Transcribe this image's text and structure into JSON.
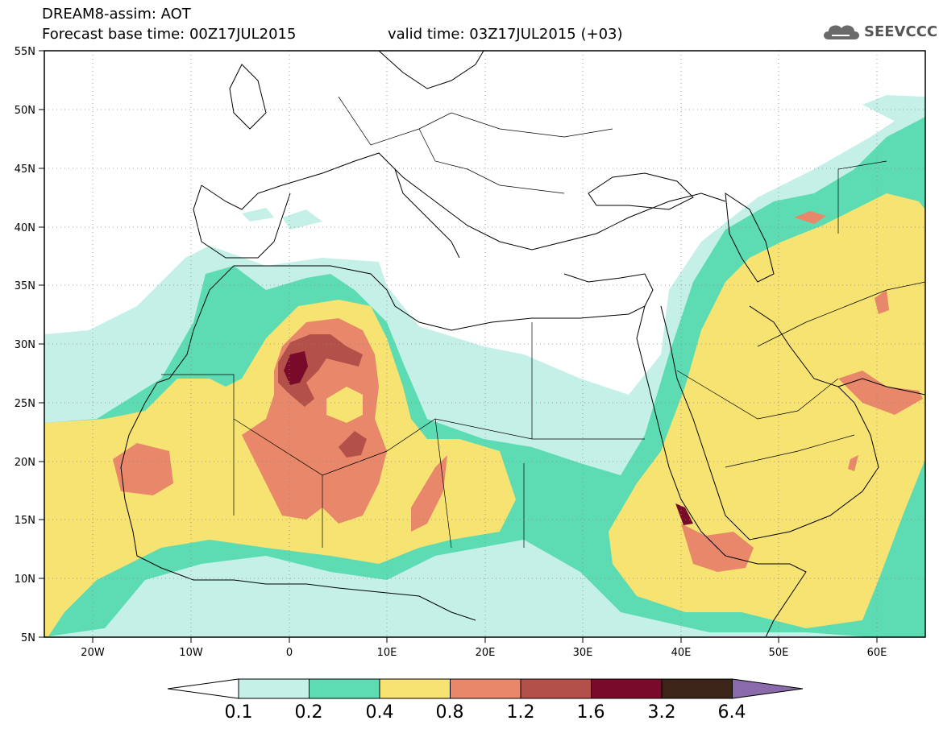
{
  "header": {
    "title_line1": "DREAM8-assim: AOT",
    "title_line2": "Forecast base time: 00Z17JUL2015",
    "valid_time": "valid time: 03Z17JUL2015 (+03)",
    "logo_text": "SEEVCCC"
  },
  "axes": {
    "lat_labels": [
      "55N",
      "50N",
      "45N",
      "40N",
      "35N",
      "30N",
      "25N",
      "20N",
      "15N",
      "10N",
      "5N"
    ],
    "lon_labels": [
      "20W",
      "10W",
      "0",
      "10E",
      "20E",
      "30E",
      "40E",
      "50E",
      "60E"
    ],
    "lon_range": [
      -25,
      65
    ],
    "lat_range": [
      5,
      55
    ],
    "grid": "dotted"
  },
  "colorbar": {
    "labels": [
      "0.1",
      "0.2",
      "0.4",
      "0.8",
      "1.2",
      "1.6",
      "3.2",
      "6.4"
    ],
    "colors": [
      "#ffffff",
      "#c5f0e8",
      "#5ddcb4",
      "#f6e372",
      "#e8876a",
      "#b4504a",
      "#7a0a2a",
      "#3c2418",
      "#8a6aaa"
    ]
  },
  "colors": {
    "c01": "#c5f0e8",
    "c02": "#5ddcb4",
    "c04": "#f6e372",
    "c08": "#e8876a",
    "c12": "#b4504a",
    "c16": "#7a0a2a"
  }
}
